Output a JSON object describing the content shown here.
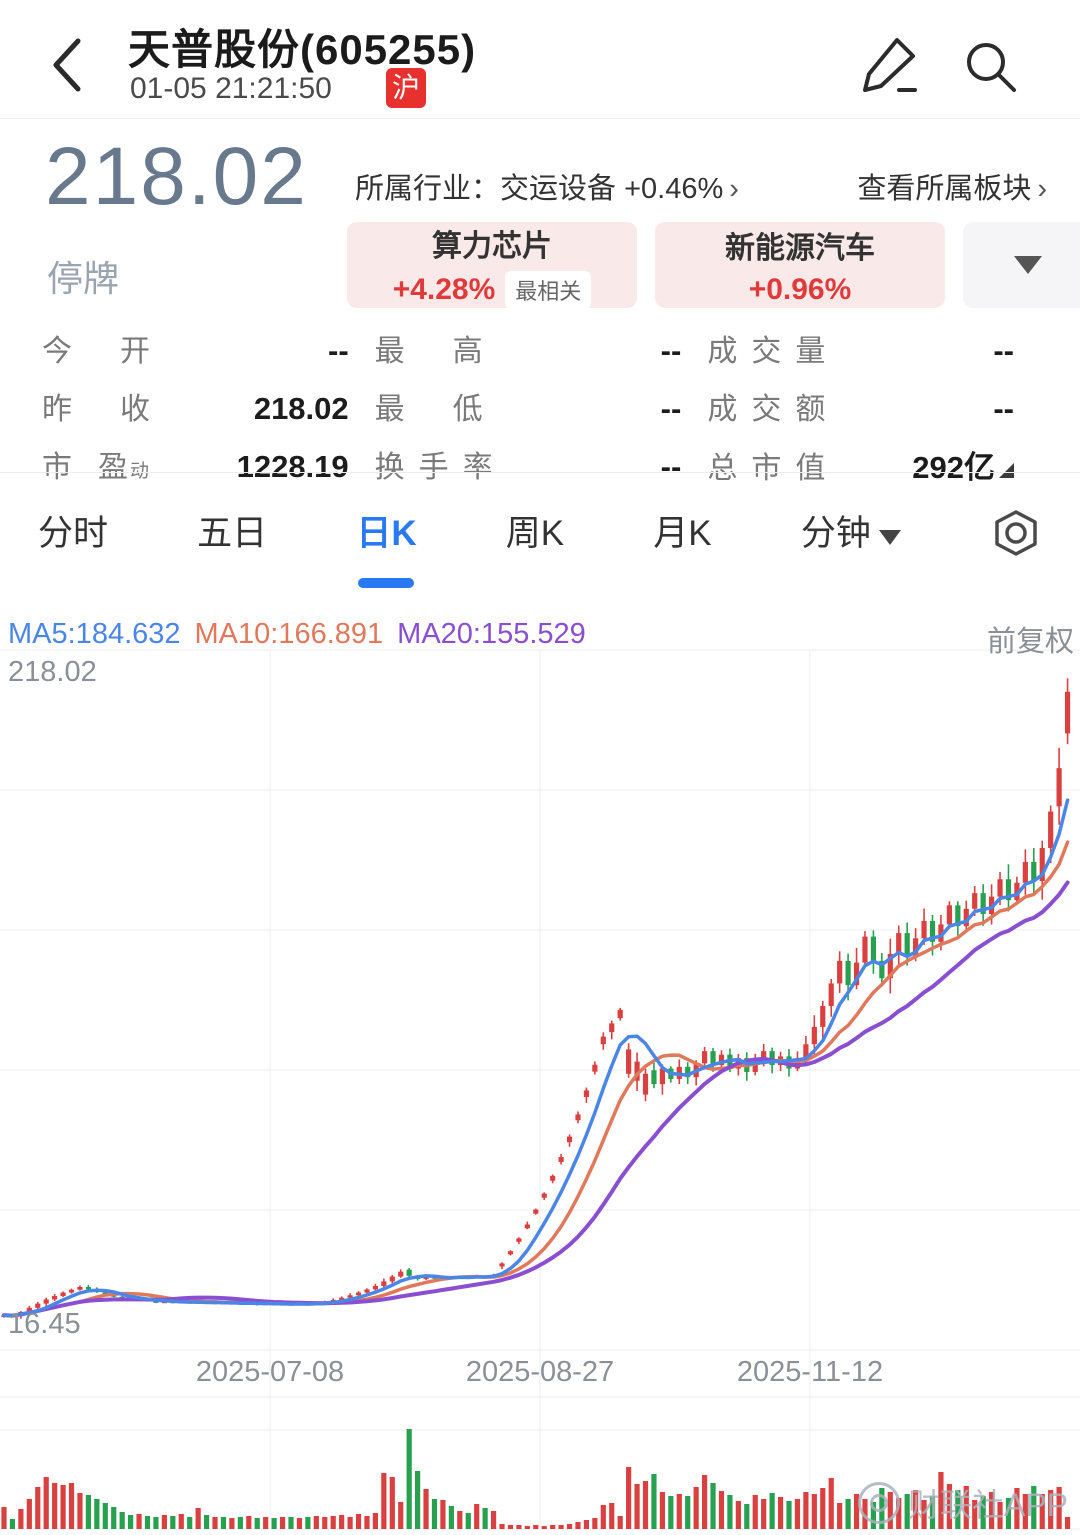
{
  "header": {
    "title": "天普股份(605255)",
    "subtitle": "01-05 21:21:50",
    "market_badge": "沪"
  },
  "price": {
    "value": "218.02",
    "status": "停牌"
  },
  "industry": {
    "label": "所属行业：",
    "value": "交运设备 +0.46%",
    "chevron": "›",
    "board_link": "查看所属板块"
  },
  "tags": [
    {
      "name": "算力芯片",
      "change": "+4.28%",
      "badge": "最相关"
    },
    {
      "name": "新能源汽车",
      "change": "+0.96%"
    }
  ],
  "stats": {
    "cells": [
      {
        "label": "今开",
        "value": "--"
      },
      {
        "label": "最高",
        "value": "--"
      },
      {
        "label": "成交量",
        "value": "--"
      },
      {
        "label": "昨收",
        "value": "218.02"
      },
      {
        "label": "最低",
        "value": "--"
      },
      {
        "label": "成交额",
        "value": "--"
      },
      {
        "label": "市盈",
        "sup": "动",
        "value": "1228.19"
      },
      {
        "label": "换手率",
        "value": "--"
      },
      {
        "label": "总市值",
        "value": "292亿"
      }
    ]
  },
  "tabs": {
    "items": [
      "分时",
      "五日",
      "日K",
      "周K",
      "月K",
      "分钟"
    ],
    "active": "日K"
  },
  "watermark": "财联社APP",
  "chart_data": {
    "type": "candlestick",
    "legend": [
      {
        "label": "MA5:184.632",
        "color": "#4A86E8"
      },
      {
        "label": "MA10:166.891",
        "color": "#E0795B"
      },
      {
        "label": "MA20:155.529",
        "color": "#8A4FD0"
      }
    ],
    "ma_windows": [
      5,
      10,
      20
    ],
    "adjust_label": "前复权",
    "y_max_label": "218.02",
    "y_min_label": "16.45",
    "y_range": [
      16.45,
      218.02
    ],
    "x_labels": [
      "2025-07-08",
      "2025-08-27",
      "2025-11-12"
    ],
    "up_color": "#DB4040",
    "down_color": "#27A04F",
    "days": [
      [
        26.0,
        26.5,
        22
      ],
      [
        26.5,
        26.2,
        10
      ],
      [
        26.2,
        27.4,
        20
      ],
      [
        27.4,
        28.6,
        30
      ],
      [
        28.6,
        29.8,
        42
      ],
      [
        29.8,
        31.0,
        52
      ],
      [
        31.0,
        32.0,
        46
      ],
      [
        32.0,
        33.0,
        44
      ],
      [
        33.0,
        33.8,
        46
      ],
      [
        33.8,
        34.6,
        36
      ],
      [
        34.6,
        33.9,
        34
      ],
      [
        33.9,
        33.1,
        30
      ],
      [
        33.1,
        32.4,
        26
      ],
      [
        32.4,
        31.8,
        22
      ],
      [
        31.8,
        31.2,
        17
      ],
      [
        31.2,
        30.8,
        14
      ],
      [
        30.8,
        31.1,
        15
      ],
      [
        31.1,
        30.6,
        13
      ],
      [
        30.6,
        30.2,
        12
      ],
      [
        30.2,
        30.5,
        14
      ],
      [
        30.5,
        30.1,
        13
      ],
      [
        30.1,
        30.4,
        15
      ],
      [
        30.4,
        30.0,
        12
      ],
      [
        30.0,
        30.3,
        21
      ],
      [
        30.3,
        29.9,
        14
      ],
      [
        29.9,
        30.2,
        12
      ],
      [
        30.2,
        29.8,
        12
      ],
      [
        29.8,
        30.1,
        11
      ],
      [
        30.1,
        29.7,
        12
      ],
      [
        29.7,
        30.0,
        13
      ],
      [
        30.0,
        29.6,
        11
      ],
      [
        29.6,
        29.9,
        12
      ],
      [
        29.9,
        29.5,
        11
      ],
      [
        29.5,
        29.8,
        12
      ],
      [
        29.8,
        29.5,
        12
      ],
      [
        29.5,
        29.9,
        11
      ],
      [
        29.9,
        29.6,
        12
      ],
      [
        29.6,
        30.0,
        13
      ],
      [
        30.0,
        30.4,
        12
      ],
      [
        30.4,
        30.9,
        13
      ],
      [
        30.9,
        31.5,
        14
      ],
      [
        31.5,
        32.2,
        12
      ],
      [
        32.2,
        33.0,
        15
      ],
      [
        33.0,
        33.9,
        13
      ],
      [
        33.9,
        34.9,
        16
      ],
      [
        34.9,
        36.2,
        56
      ],
      [
        36.2,
        37.6,
        52
      ],
      [
        37.6,
        39.0,
        27
      ],
      [
        39.6,
        37.8,
        100
      ],
      [
        37.8,
        36.9,
        58
      ],
      [
        36.9,
        37.6,
        40
      ],
      [
        37.6,
        37.1,
        30
      ],
      [
        37.1,
        37.5,
        29
      ],
      [
        37.5,
        37.2,
        23
      ],
      [
        37.2,
        37.6,
        18
      ],
      [
        37.6,
        37.3,
        16
      ],
      [
        37.3,
        37.8,
        25
      ],
      [
        37.8,
        37.5,
        21
      ],
      [
        37.5,
        38.1,
        18
      ],
      [
        40.5,
        41.4,
        5
      ],
      [
        44.0,
        44.9,
        4
      ],
      [
        47.6,
        48.6,
        4
      ],
      [
        51.5,
        52.6,
        3
      ],
      [
        55.7,
        56.9,
        4
      ],
      [
        60.3,
        61.5,
        3
      ],
      [
        65.2,
        66.6,
        4
      ],
      [
        70.6,
        72.0,
        4
      ],
      [
        76.3,
        77.9,
        5
      ],
      [
        82.6,
        84.3,
        7
      ],
      [
        89.3,
        91.2,
        9
      ],
      [
        96.6,
        98.6,
        11
      ],
      [
        104.5,
        106.7,
        24
      ],
      [
        108.0,
        110.5,
        26
      ],
      [
        112.0,
        114.4,
        13
      ],
      [
        96.0,
        103.0,
        62
      ],
      [
        94.0,
        99.5,
        45
      ],
      [
        90.0,
        96.0,
        48
      ],
      [
        97.0,
        93.0,
        55
      ],
      [
        93.0,
        97.5,
        37
      ],
      [
        97.5,
        94.5,
        33
      ],
      [
        94.5,
        98.0,
        35
      ],
      [
        98.0,
        95.0,
        33
      ],
      [
        95.0,
        99.0,
        42
      ],
      [
        99.0,
        102.5,
        54
      ],
      [
        102.5,
        98.5,
        46
      ],
      [
        98.5,
        101.5,
        38
      ],
      [
        101.5,
        97.5,
        34
      ],
      [
        97.5,
        100.5,
        28
      ],
      [
        100.5,
        96.5,
        25
      ],
      [
        96.5,
        99.5,
        34
      ],
      [
        99.5,
        102.5,
        30
      ],
      [
        102.5,
        98.5,
        36
      ],
      [
        98.5,
        101.0,
        32
      ],
      [
        101.0,
        97.5,
        28
      ],
      [
        97.5,
        100.5,
        30
      ],
      [
        100.5,
        104.5,
        37
      ],
      [
        104.5,
        109.5,
        35
      ],
      [
        109.5,
        115.5,
        41
      ],
      [
        115.5,
        122.0,
        51
      ],
      [
        122.0,
        128.5,
        26
      ],
      [
        128.5,
        121.5,
        30
      ],
      [
        121.5,
        128.0,
        35
      ],
      [
        128.0,
        135.5,
        30
      ],
      [
        135.5,
        128.5,
        27
      ],
      [
        128.5,
        123.5,
        41
      ],
      [
        123.5,
        130.5,
        37
      ],
      [
        130.5,
        136.5,
        31
      ],
      [
        136.5,
        130.0,
        35
      ],
      [
        130.0,
        135.0,
        39
      ],
      [
        135.0,
        140.0,
        29
      ],
      [
        140.0,
        134.0,
        33
      ],
      [
        134.0,
        139.0,
        57
      ],
      [
        139.0,
        144.5,
        45
      ],
      [
        144.5,
        138.5,
        39
      ],
      [
        138.5,
        143.5,
        43
      ],
      [
        143.5,
        148.0,
        29
      ],
      [
        148.0,
        142.0,
        33
      ],
      [
        142.0,
        147.0,
        37
      ],
      [
        147.0,
        152.0,
        27
      ],
      [
        152.0,
        146.0,
        31
      ],
      [
        146.0,
        151.0,
        41
      ],
      [
        151.0,
        157.0,
        35
      ],
      [
        157.0,
        151.5,
        43
      ],
      [
        151.5,
        161.0,
        35
      ],
      [
        161.0,
        171.5,
        39
      ],
      [
        173.0,
        184.0,
        42
      ],
      [
        194.0,
        206.0,
        12
      ]
    ]
  }
}
